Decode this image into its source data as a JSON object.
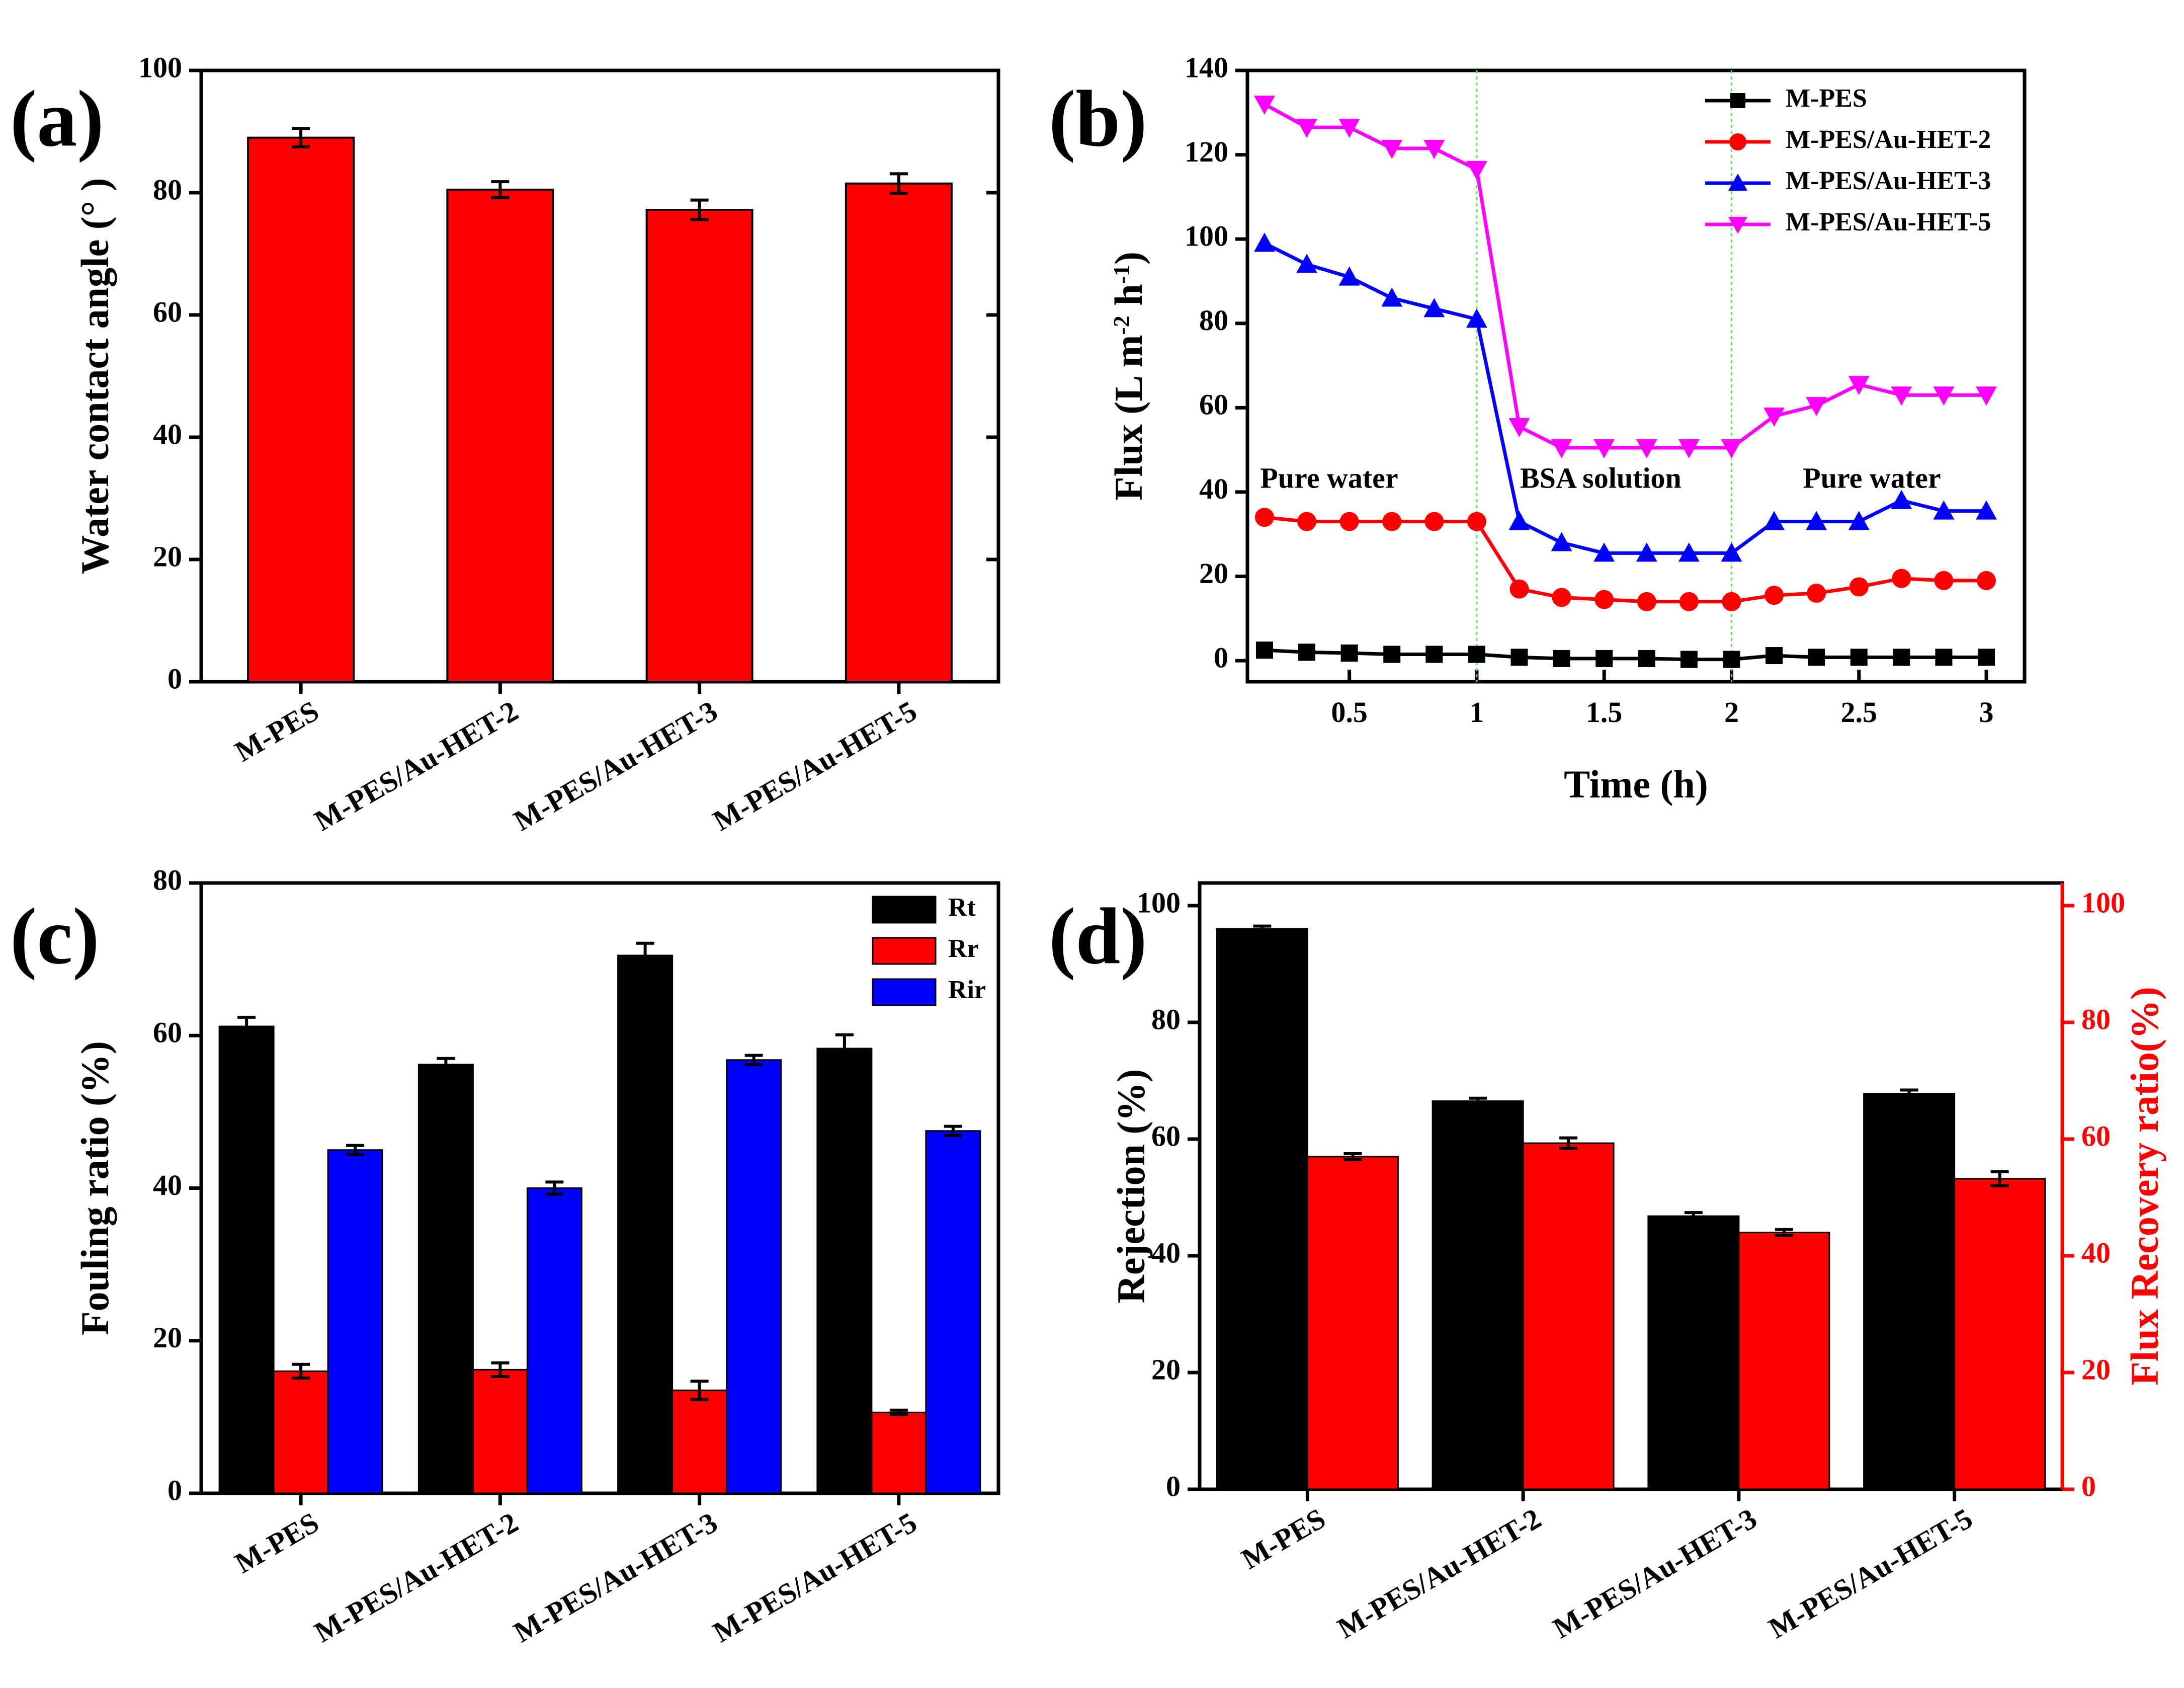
{
  "figure": {
    "panels": [
      "(a)",
      "(b)",
      "(c)",
      "(d)"
    ]
  },
  "colors": {
    "red": "#ff0000",
    "black": "#000000",
    "blue": "#0000ff",
    "magenta": "#ff00ff",
    "guide_green": "#55ee55"
  },
  "chart_data": [
    {
      "id": "a",
      "type": "bar",
      "title": "",
      "xlabel": "",
      "ylabel": "Water contact angle (° )",
      "ylim": [
        0,
        100
      ],
      "yticks": [
        0,
        20,
        40,
        60,
        80,
        100
      ],
      "categories": [
        "M-PES",
        "M-PES/Au-HET-2",
        "M-PES/Au-HET-3",
        "M-PES/Au-HET-5"
      ],
      "series": [
        {
          "name": "Water contact angle",
          "color": "#ff0000",
          "values": [
            89.0,
            80.5,
            77.2,
            81.5
          ],
          "errors": [
            1.5,
            1.3,
            1.6,
            1.6
          ]
        }
      ]
    },
    {
      "id": "b",
      "type": "line",
      "title": "",
      "xlabel": "Time (h)",
      "ylabel": "Flux (L m-2 h-1)",
      "ylabel_parts": [
        "Flux (L m",
        "-2",
        " h",
        "-1",
        ")"
      ],
      "xlim": [
        0.1,
        3.15
      ],
      "ylim": [
        -5,
        140
      ],
      "xticks": [
        0.5,
        1,
        1.5,
        2,
        2.5,
        3
      ],
      "xtick_labels": [
        "0.5",
        "1",
        "1.5",
        "2",
        "2.5",
        "3"
      ],
      "yticks": [
        0,
        20,
        40,
        60,
        80,
        100,
        120,
        140
      ],
      "x": [
        0.167,
        0.333,
        0.5,
        0.667,
        0.833,
        1.0,
        1.167,
        1.333,
        1.5,
        1.667,
        1.833,
        2.0,
        2.167,
        2.333,
        2.5,
        2.667,
        2.833,
        3.0
      ],
      "series": [
        {
          "name": "M-PES",
          "color": "#000000",
          "marker": "square",
          "values": [
            2.5,
            2.0,
            1.8,
            1.5,
            1.5,
            1.5,
            0.8,
            0.5,
            0.5,
            0.5,
            0.3,
            0.3,
            1.2,
            0.8,
            0.8,
            0.8,
            0.8,
            0.8
          ]
        },
        {
          "name": "M-PES/Au-HET-2",
          "color": "#ff0000",
          "marker": "circle",
          "values": [
            34.0,
            33.0,
            33.0,
            33.0,
            33.0,
            33.0,
            17.0,
            15.0,
            14.5,
            14.0,
            14.0,
            14.0,
            15.5,
            16.0,
            17.5,
            19.5,
            19.0,
            19.0
          ]
        },
        {
          "name": "M-PES/Au-HET-3",
          "color": "#0000ff",
          "marker": "triangle-up",
          "values": [
            99.0,
            94.0,
            91.0,
            86.0,
            83.5,
            81.0,
            33.0,
            28.0,
            25.5,
            25.5,
            25.5,
            25.5,
            33.0,
            33.0,
            33.0,
            38.0,
            35.5,
            35.5
          ]
        },
        {
          "name": "M-PES/Au-HET-5",
          "color": "#ff00ff",
          "marker": "triangle-down",
          "values": [
            132.0,
            126.5,
            126.5,
            121.5,
            121.5,
            116.5,
            55.5,
            50.5,
            50.5,
            50.5,
            50.5,
            50.5,
            58.0,
            60.5,
            65.5,
            63.0,
            63.0,
            63.0
          ]
        }
      ],
      "vlines": [
        1,
        2
      ],
      "annotations": [
        {
          "text": "Pure water",
          "x": 0.15,
          "y": 41
        },
        {
          "text": "BSA solution",
          "x": 1.17,
          "y": 41
        },
        {
          "text": "Pure water",
          "x": 2.28,
          "y": 41
        }
      ],
      "legend": "top-right"
    },
    {
      "id": "c",
      "type": "bar",
      "title": "",
      "xlabel": "",
      "ylabel": "Fouling ratio (%)",
      "ylim": [
        0,
        80
      ],
      "yticks": [
        0,
        20,
        40,
        60,
        80
      ],
      "categories": [
        "M-PES",
        "M-PES/Au-HET-2",
        "M-PES/Au-HET-3",
        "M-PES/Au-HET-5"
      ],
      "series": [
        {
          "name": "Rt",
          "color": "#000000",
          "values": [
            61.2,
            56.2,
            70.5,
            58.3
          ],
          "errors": [
            1.2,
            0.8,
            1.6,
            1.8
          ]
        },
        {
          "name": "Rr",
          "color": "#ff0000",
          "values": [
            16.0,
            16.2,
            13.5,
            10.6
          ],
          "errors": [
            0.9,
            0.9,
            1.2,
            0.3
          ]
        },
        {
          "name": "Rir",
          "color": "#0000ff",
          "values": [
            45.0,
            40.0,
            56.8,
            47.5
          ],
          "errors": [
            0.6,
            0.8,
            0.6,
            0.6
          ]
        }
      ],
      "legend": "top-right"
    },
    {
      "id": "d",
      "type": "bar",
      "title": "",
      "xlabel": "",
      "ylabel": "Rejection (%)",
      "ylabel_right": "Flux Recovery ratio(%)",
      "ylim": [
        0,
        100
      ],
      "ylim_right": [
        0,
        100
      ],
      "yticks": [
        0,
        20,
        40,
        60,
        80,
        100
      ],
      "categories": [
        "M-PES",
        "M-PES/Au-HET-2",
        "M-PES/Au-HET-3",
        "M-PES/Au-HET-5"
      ],
      "series": [
        {
          "name": "Rejection",
          "axis": "left",
          "color": "#000000",
          "values": [
            96.0,
            66.5,
            46.8,
            67.8
          ],
          "errors": [
            0.5,
            0.5,
            0.6,
            0.6
          ]
        },
        {
          "name": "Flux Recovery ratio",
          "axis": "right",
          "color": "#ff0000",
          "values": [
            57.0,
            59.3,
            44.0,
            53.2
          ],
          "errors": [
            0.5,
            0.9,
            0.5,
            1.2
          ]
        }
      ]
    }
  ]
}
